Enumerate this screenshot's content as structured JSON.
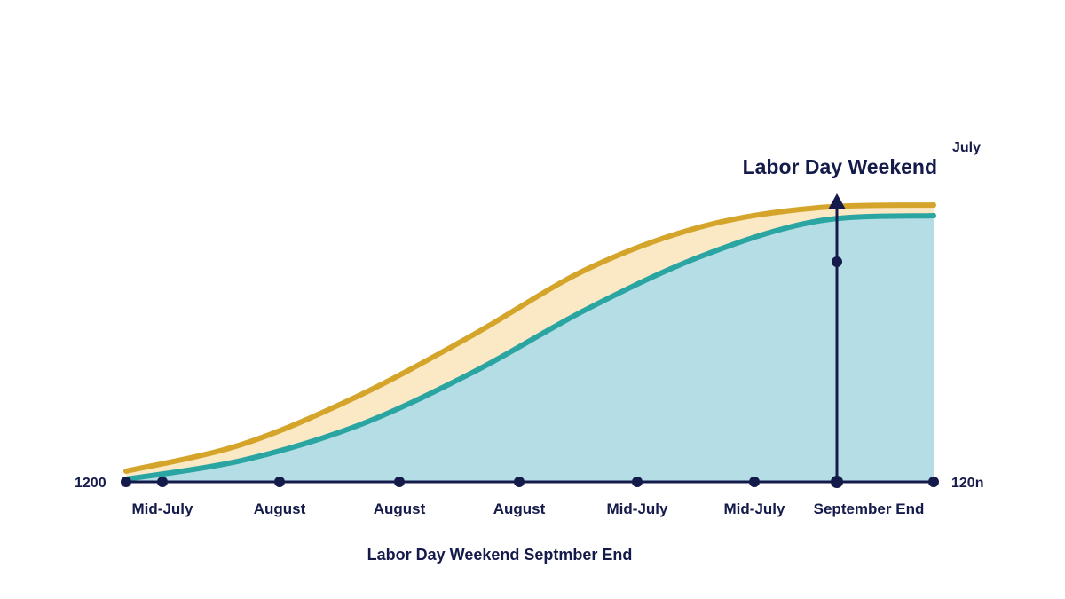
{
  "chart_data": {
    "type": "area",
    "title": "",
    "xlabel": "Labor Day Weekend Septmber End",
    "ylabel": "",
    "x_tick_labels": [
      "Mid-July",
      "August",
      "August",
      "August",
      "Mid-July",
      "Mid-July",
      "September End"
    ],
    "left_axis_label": "1200",
    "right_axis_label": "120n",
    "right_top_label": "July",
    "annotation": {
      "label": "Labor Day Weekend",
      "x_index": 6
    },
    "x": [
      0,
      1,
      2,
      3,
      4,
      5,
      6,
      7
    ],
    "ylim": [
      0,
      100
    ],
    "series": [
      {
        "color": "#2aa5a2",
        "fill": "#b5dde6",
        "values": [
          1,
          8,
          21,
          41,
          65,
          85,
          98,
          100
        ]
      },
      {
        "color": "#d4a52a",
        "fill": "#fbe9c6",
        "values": [
          4,
          14,
          32,
          55,
          80,
          96,
          103,
          104
        ]
      }
    ],
    "axis_color": "#141a4a"
  }
}
